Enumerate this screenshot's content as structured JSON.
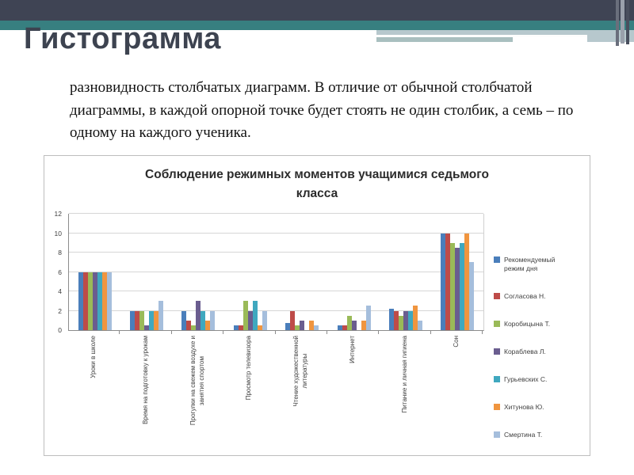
{
  "slide": {
    "title": "Гистограмма",
    "paragraph": "разновидность столбчатых диаграмм. В отличие от обычной столбчатой диаграммы, в каждой опорной точке будет стоять не один столбик, а семь – по одному на каждого ученика."
  },
  "theme": {
    "header_dark": "#3f4454",
    "header_teal": "#377f80",
    "title_color": "#3d4350"
  },
  "chart_data": {
    "type": "bar",
    "title": "Соблюдение режимных моментов учащимися седьмого класса",
    "categories": [
      "Уроки в школе",
      "Время на подготовку к урокам",
      "Прогулки на свежем воздухе и\nзанятия спортом",
      "Просмотр телевизора",
      "Чтение художественной\nлитературы",
      "Интернет",
      "Питание и личная гигиена",
      "Сон"
    ],
    "series": [
      {
        "name": "Рекомендуемый режим дня",
        "color": "#4a7ebb",
        "values": [
          6,
          2,
          2,
          0.5,
          0.75,
          0.5,
          2.2,
          10
        ]
      },
      {
        "name": "Согласова Н.",
        "color": "#be4b48",
        "values": [
          6,
          2,
          1,
          0.5,
          2,
          0.5,
          2,
          10
        ]
      },
      {
        "name": "Коробицына Т.",
        "color": "#9aba58",
        "values": [
          6,
          2,
          0.5,
          3,
          0.5,
          1.5,
          1.5,
          9
        ]
      },
      {
        "name": "Кораблева Л.",
        "color": "#6a5d8f",
        "values": [
          6,
          0.5,
          3,
          2,
          1,
          1,
          2,
          8.5
        ]
      },
      {
        "name": "Гурьевских С.",
        "color": "#3fa8bf",
        "values": [
          6,
          2,
          2,
          3,
          0,
          0,
          2,
          9
        ]
      },
      {
        "name": "Хитунова Ю.",
        "color": "#f0953f",
        "values": [
          6,
          2,
          1,
          0.5,
          1,
          1,
          2.5,
          10
        ]
      },
      {
        "name": "Смертина  Т.",
        "color": "#a5bedc",
        "values": [
          6,
          3,
          2,
          2,
          0.5,
          2.5,
          1,
          7
        ]
      }
    ],
    "ylim": [
      0,
      12
    ],
    "ytick_step": 2,
    "yticks": [
      0,
      2,
      4,
      6,
      8,
      10,
      12
    ],
    "grid": true,
    "legend_position": "right"
  }
}
